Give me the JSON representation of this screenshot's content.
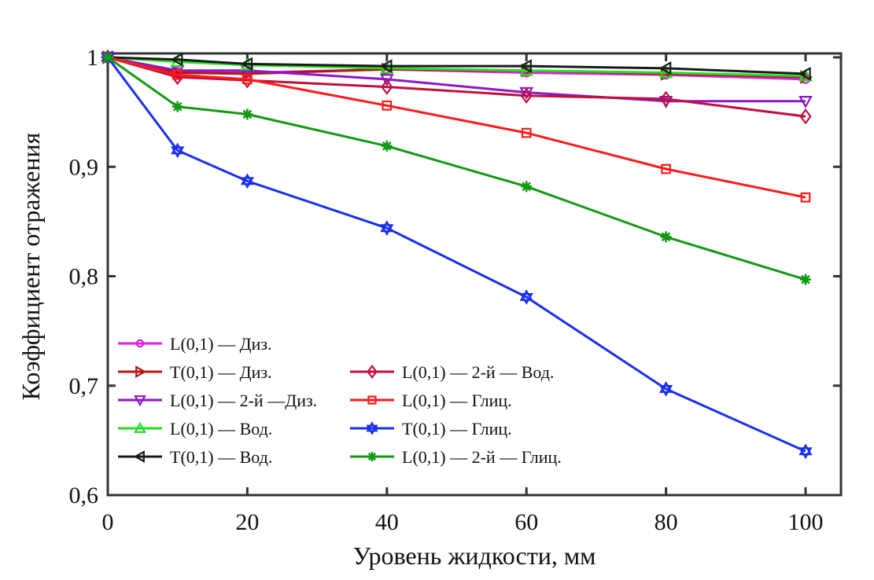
{
  "chart_data": {
    "type": "line",
    "title": "",
    "xlabel": "Уровень жидкости, мм",
    "ylabel": "Коэффициент отражения",
    "xlim": [
      0,
      105
    ],
    "ylim": [
      0.6,
      1.0
    ],
    "x_ticks": [
      0,
      20,
      40,
      60,
      80,
      100
    ],
    "x_tick_labels": [
      "0",
      "20",
      "40",
      "60",
      "80",
      "100"
    ],
    "y_ticks": [
      0.6,
      0.7,
      0.8,
      0.9,
      1.0
    ],
    "y_tick_labels": [
      "0,6",
      "0,7",
      "0,8",
      "0,9",
      "1"
    ],
    "grid": false,
    "legend_placement": "bottom-left (two columns)",
    "x": [
      0,
      10,
      20,
      40,
      60,
      80,
      100
    ],
    "series": [
      {
        "name": "L(0,1) — Диз.",
        "color": "#e020e0",
        "marker": "circle",
        "values": [
          1.0,
          0.987,
          0.986,
          0.989,
          0.986,
          0.984,
          0.98
        ]
      },
      {
        "name": "T(0,1) — Диз.",
        "color": "#b01818",
        "marker": "triangle-right",
        "values": [
          1.0,
          0.986,
          0.985,
          0.989,
          0.988,
          0.985,
          0.982
        ]
      },
      {
        "name": "L(0,1) — 2-й —Диз.",
        "color": "#8a18c8",
        "marker": "triangle-down",
        "values": [
          1.0,
          0.988,
          0.988,
          0.98,
          0.968,
          0.96,
          0.96
        ]
      },
      {
        "name": "L(0,1) — Вод.",
        "color": "#22e022",
        "marker": "triangle-up",
        "values": [
          1.0,
          0.996,
          0.993,
          0.99,
          0.988,
          0.986,
          0.983
        ]
      },
      {
        "name": "T(0,1) — Вод.",
        "color": "#1a1a1a",
        "marker": "triangle-left",
        "values": [
          1.0,
          0.998,
          0.994,
          0.992,
          0.992,
          0.99,
          0.985
        ]
      },
      {
        "name": "L(0,1) — 2-й — Вод.",
        "color": "#c0103c",
        "marker": "diamond",
        "values": [
          1.0,
          0.982,
          0.979,
          0.973,
          0.965,
          0.962,
          0.946
        ]
      },
      {
        "name": "L(0,1) — Глиц.",
        "color": "#ff1a1a",
        "marker": "square",
        "values": [
          1.0,
          0.984,
          0.98,
          0.956,
          0.931,
          0.898,
          0.872
        ]
      },
      {
        "name": "T(0,1) — Глиц.",
        "color": "#1a2ef0",
        "marker": "hexagram",
        "values": [
          1.0,
          0.915,
          0.887,
          0.844,
          0.781,
          0.697,
          0.64
        ]
      },
      {
        "name": "L(0,1) — 2-й — Глиц.",
        "color": "#139a13",
        "marker": "asterisk",
        "values": [
          1.0,
          0.955,
          0.948,
          0.919,
          0.882,
          0.836,
          0.797
        ]
      }
    ]
  }
}
